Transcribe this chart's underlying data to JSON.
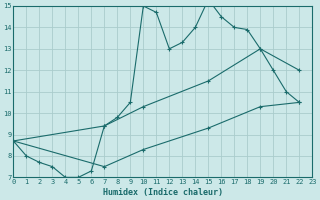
{
  "xlabel": "Humidex (Indice chaleur)",
  "bg_color": "#cce8e8",
  "grid_color": "#aacccc",
  "line_color": "#1a6b6b",
  "xlim": [
    0,
    23
  ],
  "ylim": [
    7,
    15
  ],
  "xticks": [
    0,
    1,
    2,
    3,
    4,
    5,
    6,
    7,
    8,
    9,
    10,
    11,
    12,
    13,
    14,
    15,
    16,
    17,
    18,
    19,
    20,
    21,
    22,
    23
  ],
  "yticks": [
    7,
    8,
    9,
    10,
    11,
    12,
    13,
    14,
    15
  ],
  "curve1_x": [
    0,
    1,
    2,
    3,
    4,
    5,
    6,
    7,
    8,
    9,
    10,
    11,
    12,
    13,
    14,
    15,
    16,
    17,
    18,
    19,
    20,
    21,
    22
  ],
  "curve1_y": [
    8.7,
    8.0,
    7.7,
    7.5,
    7.0,
    7.0,
    7.3,
    9.4,
    9.8,
    10.5,
    15.0,
    14.7,
    13.0,
    13.3,
    14.0,
    15.3,
    14.5,
    14.0,
    13.9,
    13.0,
    12.0,
    11.0,
    10.5
  ],
  "curve2_x": [
    0,
    7,
    10,
    15,
    19,
    22
  ],
  "curve2_y": [
    8.7,
    9.4,
    10.3,
    11.5,
    13.0,
    12.0
  ],
  "curve3_x": [
    0,
    7,
    10,
    15,
    19,
    22
  ],
  "curve3_y": [
    8.7,
    7.5,
    8.3,
    9.3,
    10.3,
    10.5
  ]
}
